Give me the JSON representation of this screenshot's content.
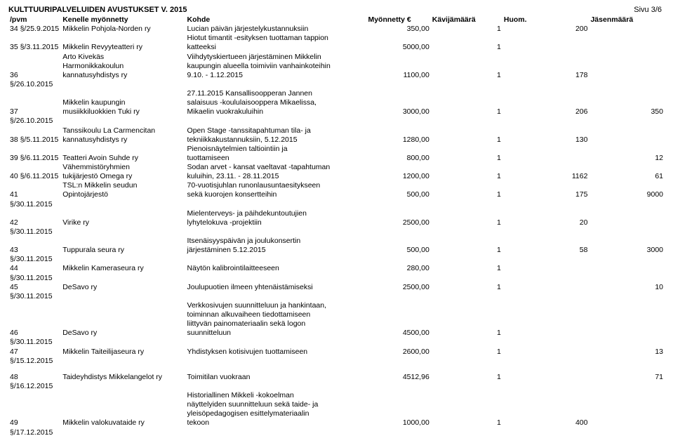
{
  "page_title": "KULTTUURIPALVELUIDEN AVUSTUKSET V. 2015",
  "page_number": "Sivu 3/6",
  "headers": {
    "num": "/pvm",
    "grantee": "Kenelle myönnetty",
    "purpose": "Kohde",
    "amount": "Myönnetty €",
    "visitors": "Kävijämäärä",
    "note": "Huom.",
    "members": "Jäsenmäärä"
  },
  "rows": [
    {
      "num": "34 §/25.9.2015",
      "grantee": "Mikkelin Pohjola-Norden ry",
      "purpose": "Lucian päivän järjestelykustannuksiin",
      "amount": "350,00",
      "visitors": "1",
      "note": "200",
      "members": ""
    },
    {
      "num": "",
      "grantee": "",
      "purpose": "Hiotut timantit -esityksen tuottaman tappion",
      "amount": "",
      "visitors": "",
      "note": "",
      "members": ""
    },
    {
      "num": "35 §/3.11.2015",
      "grantee": "Mikkelin Revyyteatteri ry",
      "purpose": "katteeksi",
      "amount": "5000,00",
      "visitors": "1",
      "note": "",
      "members": ""
    },
    {
      "num": "",
      "grantee": "Arto Kivekäs",
      "purpose": "Viihdytyskiertueen järjestäminen Mikkelin",
      "amount": "",
      "visitors": "",
      "note": "",
      "members": ""
    },
    {
      "num": "",
      "grantee": "Harmonikkakoulun",
      "purpose": "kaupungin alueella toimiviin vanhainkoteihin",
      "amount": "",
      "visitors": "",
      "note": "",
      "members": ""
    },
    {
      "num": "36 §/26.10.2015",
      "grantee": "kannatusyhdistys ry",
      "purpose": "9.10. - 1.12.2015",
      "amount": "1100,00",
      "visitors": "1",
      "note": "178",
      "members": ""
    },
    {
      "num": "",
      "grantee": "",
      "purpose": "27.11.2015 Kansallisoopperan Jannen",
      "amount": "",
      "visitors": "",
      "note": "",
      "members": ""
    },
    {
      "num": "",
      "grantee": "Mikkelin kaupungin",
      "purpose": "salaisuus -koululaisooppera Mikaelissa,",
      "amount": "",
      "visitors": "",
      "note": "",
      "members": ""
    },
    {
      "num": "37 §/26.10.2015",
      "grantee": "musiikkiluokkien Tuki ry",
      "purpose": "Mikaelin vuokrakuluihin",
      "amount": "3000,00",
      "visitors": "1",
      "note": "206",
      "members": "350"
    },
    {
      "num": "",
      "grantee": "Tanssikoulu La Carmencitan",
      "purpose": "Open Stage -tanssitapahtuman tila- ja",
      "amount": "",
      "visitors": "",
      "note": "",
      "members": ""
    },
    {
      "num": "38 §/5.11.2015",
      "grantee": "kannatusyhdistys ry",
      "purpose": "tekniikkakustannuksiin, 5.12.2015",
      "amount": "1280,00",
      "visitors": "1",
      "note": "130",
      "members": ""
    },
    {
      "num": "",
      "grantee": "",
      "purpose": "Pienoisnäytelmien taltiointiin ja",
      "amount": "",
      "visitors": "",
      "note": "",
      "members": ""
    },
    {
      "num": "39 §/6.11.2015",
      "grantee": "Teatteri Avoin Suhde ry",
      "purpose": "tuottamiseen",
      "amount": "800,00",
      "visitors": "1",
      "note": "",
      "members": "12"
    },
    {
      "num": "",
      "grantee": "Vähemmistöryhmien",
      "purpose": "Sodan arvet - kansat vaeltavat -tapahtuman",
      "amount": "",
      "visitors": "",
      "note": "",
      "members": ""
    },
    {
      "num": "40 §/6.11.2015",
      "grantee": "tukijärjestö Omega ry",
      "purpose": "kuluihin, 23.11. - 28.11.2015",
      "amount": "1200,00",
      "visitors": "1",
      "note": "1162",
      "members": "61"
    },
    {
      "num": "",
      "grantee": "TSL:n Mikkelin seudun",
      "purpose": "70-vuotisjuhlan runonlausuntaesitykseen",
      "amount": "",
      "visitors": "",
      "note": "",
      "members": ""
    },
    {
      "num": "41 §/30.11.2015",
      "grantee": "Opintojärjestö",
      "purpose": "sekä kuorojen konsertteihin",
      "amount": "500,00",
      "visitors": "1",
      "note": "175",
      "members": "9000"
    },
    {
      "num": "",
      "grantee": "",
      "purpose": "Mielenterveys- ja päihdekuntoutujien",
      "amount": "",
      "visitors": "",
      "note": "",
      "members": ""
    },
    {
      "num": "42 §/30.11.2015",
      "grantee": "Virike ry",
      "purpose": "lyhytelokuva -projektiin",
      "amount": "2500,00",
      "visitors": "1",
      "note": "20",
      "members": ""
    },
    {
      "num": "",
      "grantee": "",
      "purpose": "Itsenäisyyspäivän ja joulukonsertin",
      "amount": "",
      "visitors": "",
      "note": "",
      "members": ""
    },
    {
      "num": "43 §/30.11.2015",
      "grantee": "Tuppurala seura ry",
      "purpose": "järjestäminen 5.12.2015",
      "amount": "500,00",
      "visitors": "1",
      "note": "58",
      "members": "3000"
    },
    {
      "num": "44 §/30.11.2015",
      "grantee": "Mikkelin Kameraseura ry",
      "purpose": "Näytön kalibrointilaitteeseen",
      "amount": "280,00",
      "visitors": "1",
      "note": "",
      "members": ""
    },
    {
      "num": "45 §/30.11.2015",
      "grantee": "DeSavo ry",
      "purpose": "Joulupuotien ilmeen yhtenäistämiseksi",
      "amount": "2500,00",
      "visitors": "1",
      "note": "",
      "members": "10"
    },
    {
      "num": "",
      "grantee": "",
      "purpose": "Verkkosivujen suunnitteluun ja hankintaan,",
      "amount": "",
      "visitors": "",
      "note": "",
      "members": ""
    },
    {
      "num": "",
      "grantee": "",
      "purpose": "toiminnan alkuvaiheen tiedottamiseen",
      "amount": "",
      "visitors": "",
      "note": "",
      "members": ""
    },
    {
      "num": "",
      "grantee": "",
      "purpose": "liittyvän painomateriaalin sekä logon",
      "amount": "",
      "visitors": "",
      "note": "",
      "members": ""
    },
    {
      "num": "46 §/30.11.2015",
      "grantee": "DeSavo ry",
      "purpose": "suunnitteluun",
      "amount": "4500,00",
      "visitors": "1",
      "note": "",
      "members": ""
    },
    {
      "num": "47 §/15.12.2015",
      "grantee": "Mikkelin Taiteilijaseura ry",
      "purpose": "Yhdistyksen kotisivujen tuottamiseen",
      "amount": "2600,00",
      "visitors": "1",
      "note": "",
      "members": "13"
    },
    {
      "spacer": true
    },
    {
      "num": "48 §/16.12.2015",
      "grantee": "Taideyhdistys Mikkelangelot ry",
      "purpose": "Toimitilan vuokraan",
      "amount": "4512,96",
      "visitors": "1",
      "note": "",
      "members": "71"
    },
    {
      "num": "",
      "grantee": "",
      "purpose": "Historiallinen Mikkeli -kokoelman",
      "amount": "",
      "visitors": "",
      "note": "",
      "members": ""
    },
    {
      "num": "",
      "grantee": "",
      "purpose": "näyttelyiden suunnitteluun sekä taide- ja",
      "amount": "",
      "visitors": "",
      "note": "",
      "members": ""
    },
    {
      "num": "",
      "grantee": "",
      "purpose": "yleisöpedagogisen esittelymateriaalin",
      "amount": "",
      "visitors": "",
      "note": "",
      "members": ""
    },
    {
      "num": "49 §/17.12.2015",
      "grantee": "Mikkelin valokuvataide ry",
      "purpose": "tekoon",
      "amount": "1000,00",
      "visitors": "1",
      "note": "400",
      "members": ""
    }
  ]
}
